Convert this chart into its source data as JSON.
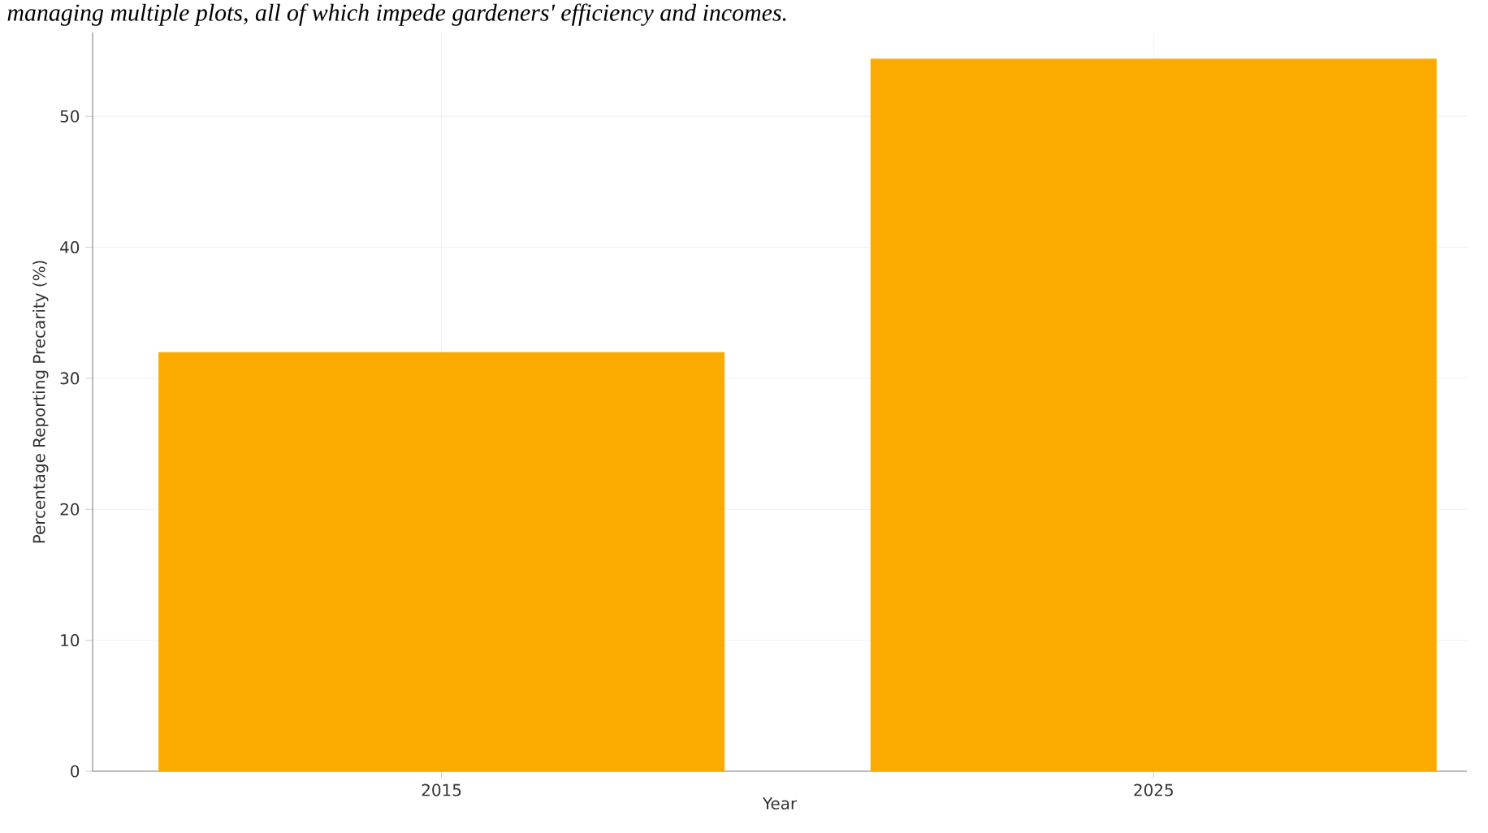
{
  "chart_data": {
    "type": "bar",
    "title": "managing multiple plots, all of which impede gardeners' efficiency and incomes.",
    "xlabel": "Year",
    "ylabel": "Percentage Reporting Precarity (%)",
    "categories": [
      "2015",
      "2025"
    ],
    "values": [
      32,
      54.4
    ],
    "color": "#fbab00",
    "ylim": [
      0,
      56.4
    ],
    "yticks": [
      0,
      10,
      20,
      30,
      40,
      50
    ],
    "grid": true
  }
}
